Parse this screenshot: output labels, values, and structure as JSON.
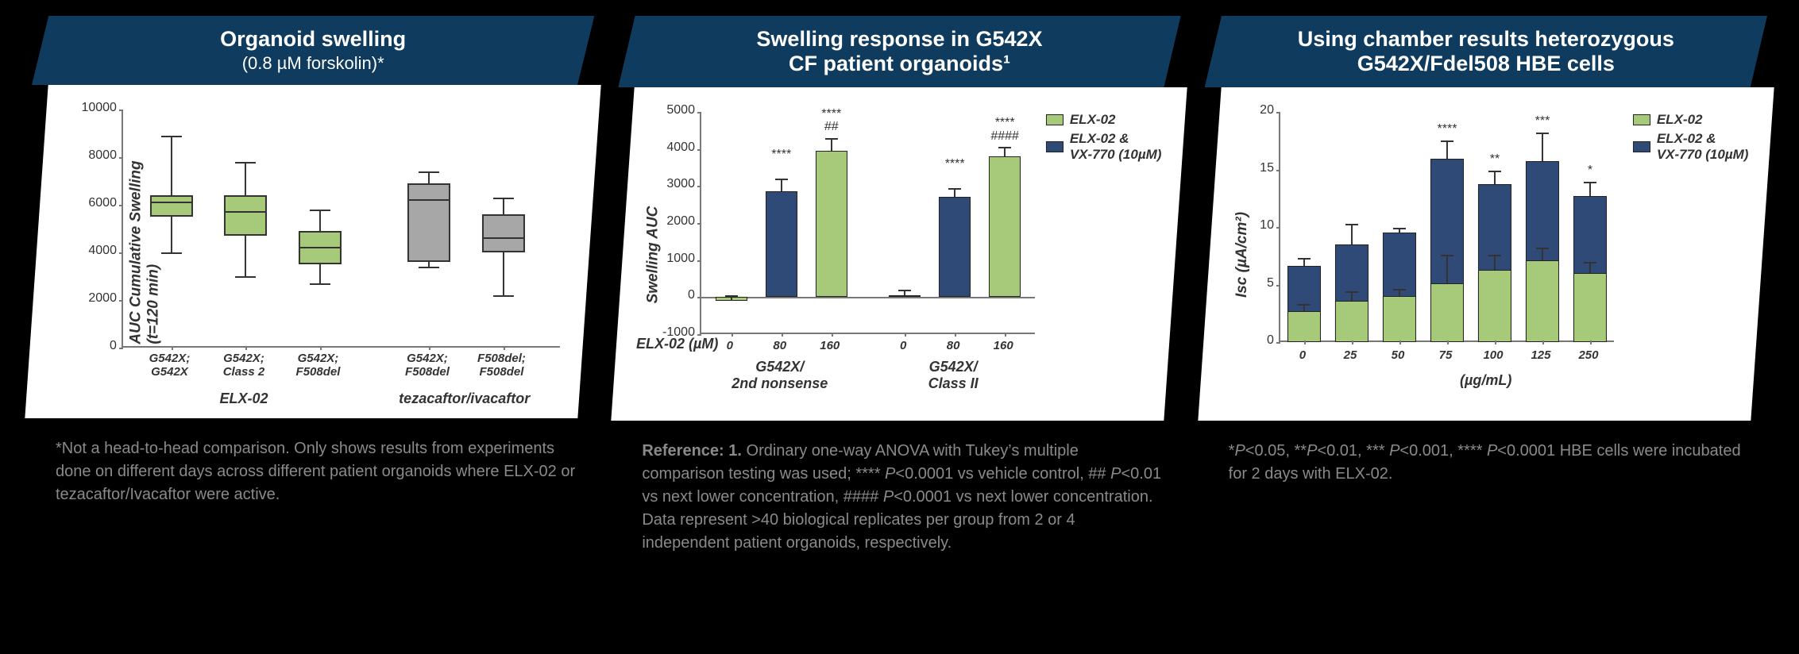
{
  "colors": {
    "header_bg": "#0f3b5e",
    "green": "#a6c97a",
    "navy": "#2f4a77",
    "gray_box": "#a7a7a7",
    "axis": "#777777",
    "text": "#333333",
    "caption": "#8a8a8a",
    "body_bg": "#ffffff",
    "page_bg": "#000000"
  },
  "panel1": {
    "title": "Organoid swelling",
    "subtitle": "(0.8 µM forskolin)*",
    "ylabel": "AUC Cumulative Swelling\n(t=120 min)",
    "ylim": [
      0,
      10000
    ],
    "ytick_step": 2000,
    "categories": [
      "G542X;\nG542X",
      "G542X;\nClass 2",
      "G542X;\nF508del",
      "G542X;\nF508del",
      "F508del;\nF508del"
    ],
    "groups": [
      {
        "label": "ELX-02",
        "span": [
          0,
          2
        ]
      },
      {
        "label": "tezacaftor/ivacaftor",
        "span": [
          3,
          4
        ]
      }
    ],
    "boxes": [
      {
        "min": 4000,
        "q1": 5500,
        "median": 6200,
        "q3": 6400,
        "max": 8900,
        "color": "#a6c97a"
      },
      {
        "min": 3000,
        "q1": 4700,
        "median": 5800,
        "q3": 6400,
        "max": 7800,
        "color": "#a6c97a"
      },
      {
        "min": 2700,
        "q1": 3500,
        "median": 4300,
        "q3": 4900,
        "max": 5800,
        "color": "#a6c97a"
      },
      {
        "min": 3400,
        "q1": 3600,
        "median": 6300,
        "q3": 6900,
        "max": 7400,
        "color": "#a7a7a7"
      },
      {
        "min": 2200,
        "q1": 4000,
        "median": 4700,
        "q3": 5600,
        "max": 6300,
        "color": "#a7a7a7"
      }
    ],
    "caption": "*Not a head-to-head comparison. Only shows results from experiments done on different days across different patient organoids where ELX-02 or tezacaftor/Ivacaftor were active."
  },
  "panel2": {
    "title": "Swelling response in G542X",
    "subtitle_line2": "CF patient organoids¹",
    "ylabel": "Swelling AUC",
    "ylim": [
      -1000,
      5000
    ],
    "yticks": [
      -1000,
      0,
      1000,
      2000,
      3000,
      4000,
      5000
    ],
    "legend": [
      {
        "label": "ELX-02",
        "color": "#a6c97a"
      },
      {
        "label": "ELX-02 &\nVX-770 (10µM)",
        "color": "#2f4a77"
      }
    ],
    "x_row_label": "ELX-02 (µM)",
    "x_values": [
      "0",
      "80",
      "160",
      "0",
      "80",
      "160"
    ],
    "groups": [
      {
        "label": "G542X/\n2nd nonsense",
        "span": [
          0,
          2
        ]
      },
      {
        "label": "G542X/\nClass II",
        "span": [
          3,
          5
        ]
      }
    ],
    "bars": [
      {
        "value": -100,
        "err": 150,
        "color": "#a6c97a",
        "sig": ""
      },
      {
        "value": 2850,
        "err": 350,
        "color": "#2f4a77",
        "sig": "****"
      },
      {
        "value": 3950,
        "err": 350,
        "color": "#a6c97a",
        "sig": "****\n##"
      },
      {
        "value": 50,
        "err": 150,
        "color": "#a6c97a",
        "sig": ""
      },
      {
        "value": 2700,
        "err": 250,
        "color": "#2f4a77",
        "sig": "****"
      },
      {
        "value": 3800,
        "err": 250,
        "color": "#a6c97a",
        "sig": "****\n####"
      }
    ],
    "caption": "Reference: 1. Ordinary one-way ANOVA with Tukey's multiple comparison testing was used; **** P<0.0001 vs vehicle control, ## P<0.01 vs next lower concentration, #### P<0.0001 vs next lower concentration. Data represent >40 biological replicates per group from 2 or 4 independent patient organoids, respectively."
  },
  "panel3": {
    "title": "Using chamber results heterozygous",
    "subtitle_line2": "G542X/Fdel508 HBE cells",
    "ylabel": "Isc (µA/cm²)",
    "ylim": [
      0,
      20
    ],
    "ytick_step": 5,
    "legend": [
      {
        "label": "ELX-02",
        "color": "#a6c97a"
      },
      {
        "label": "ELX-02 &\nVX-770 (10µM)",
        "color": "#2f4a77"
      }
    ],
    "x_values": [
      "0",
      "25",
      "50",
      "75",
      "100",
      "125",
      "250"
    ],
    "x_unit": "(µg/mL)",
    "stacks": [
      {
        "green": 2.7,
        "navy": 6.6,
        "g_err": 0.6,
        "n_err": 0.7,
        "sig": ""
      },
      {
        "green": 3.6,
        "navy": 8.5,
        "g_err": 0.8,
        "n_err": 1.8,
        "sig": ""
      },
      {
        "green": 4.0,
        "navy": 9.5,
        "g_err": 0.6,
        "n_err": 0.4,
        "sig": ""
      },
      {
        "green": 5.1,
        "navy": 15.9,
        "g_err": 2.5,
        "n_err": 1.6,
        "sig": "****"
      },
      {
        "green": 6.3,
        "navy": 13.7,
        "g_err": 1.3,
        "n_err": 1.2,
        "sig": "**"
      },
      {
        "green": 7.1,
        "navy": 15.7,
        "g_err": 1.1,
        "n_err": 2.5,
        "sig": "***"
      },
      {
        "green": 6.0,
        "navy": 12.7,
        "g_err": 1.0,
        "n_err": 1.2,
        "sig": "*"
      }
    ],
    "caption": "*P<0.05, **P<0.01, *** P<0.001, **** P<0.0001 HBE cells were incubated for 2 days with ELX-02."
  }
}
